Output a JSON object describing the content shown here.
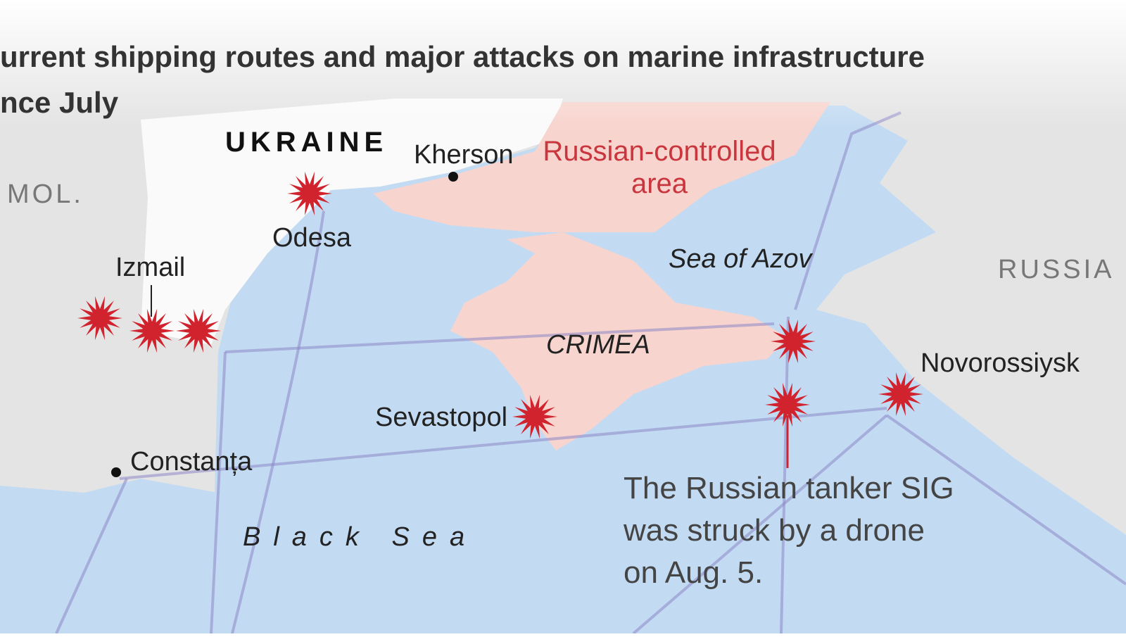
{
  "title": {
    "line1": "urrent shipping routes and major attacks on marine infrastructure",
    "line2": "nce July"
  },
  "labels": {
    "ukraine": "UKRAINE",
    "moldova": "MOL.",
    "russia": "RUSSIA",
    "kherson": "Kherson",
    "russian_controlled_line1": "Russian-controlled",
    "russian_controlled_line2": "area",
    "odesa": "Odesa",
    "izmail": "Izmail",
    "sea_of_azov": "Sea of Azov",
    "crimea": "CRIMEA",
    "novorossiysk": "Novorossiysk",
    "sevastopol": "Sevastopol",
    "constanta": "Constanța",
    "black_sea": "Black Sea"
  },
  "annotation": {
    "line1": "The Russian tanker SIG",
    "line2": "was struck by a drone",
    "line3": "on Aug.  5."
  }
}
